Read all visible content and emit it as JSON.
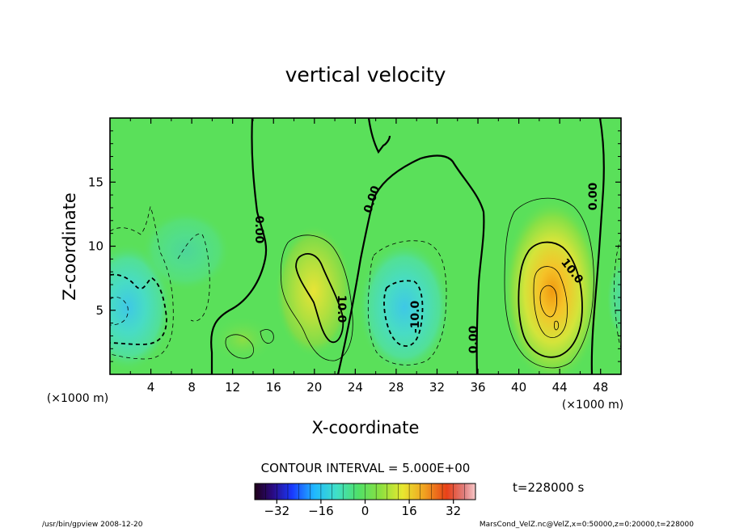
{
  "chart_data": {
    "type": "heatmap",
    "title": "vertical velocity",
    "xlabel": "X-coordinate",
    "ylabel": "Z-coordinate",
    "x_unit": "(×1000 m)",
    "y_unit": "(×1000 m)",
    "xlim": [
      0,
      50
    ],
    "ylim": [
      0,
      20
    ],
    "x_ticks": [
      "4",
      "8",
      "12",
      "16",
      "20",
      "24",
      "28",
      "32",
      "36",
      "40",
      "44",
      "48"
    ],
    "y_ticks": [
      "5",
      "10",
      "15"
    ],
    "contour_interval_text": "CONTOUR INTERVAL = 5.000E+00",
    "time_text": "t=228000 s",
    "colorbar": {
      "ticks": [
        "−32",
        "−16",
        "0",
        "16",
        "32"
      ],
      "range": [
        -40,
        40
      ]
    },
    "contour_labels": [
      "0.00",
      "0.00",
      "0.00",
      "0.00",
      "10.0",
      "-10.0",
      "10.0"
    ],
    "features": [
      {
        "x": 1.2,
        "z": 4.8,
        "value": -12
      },
      {
        "x": 20.5,
        "z": 6.5,
        "value": 12
      },
      {
        "x": 28.8,
        "z": 5.2,
        "value": -12
      },
      {
        "x": 43.5,
        "z": 4.5,
        "value": 22
      }
    ]
  },
  "footer": {
    "left": "/usr/bin/gpview  2008-12-20",
    "right": "MarsCond_VelZ.nc@VelZ,x=0:50000,z=0:20000,t=228000"
  }
}
